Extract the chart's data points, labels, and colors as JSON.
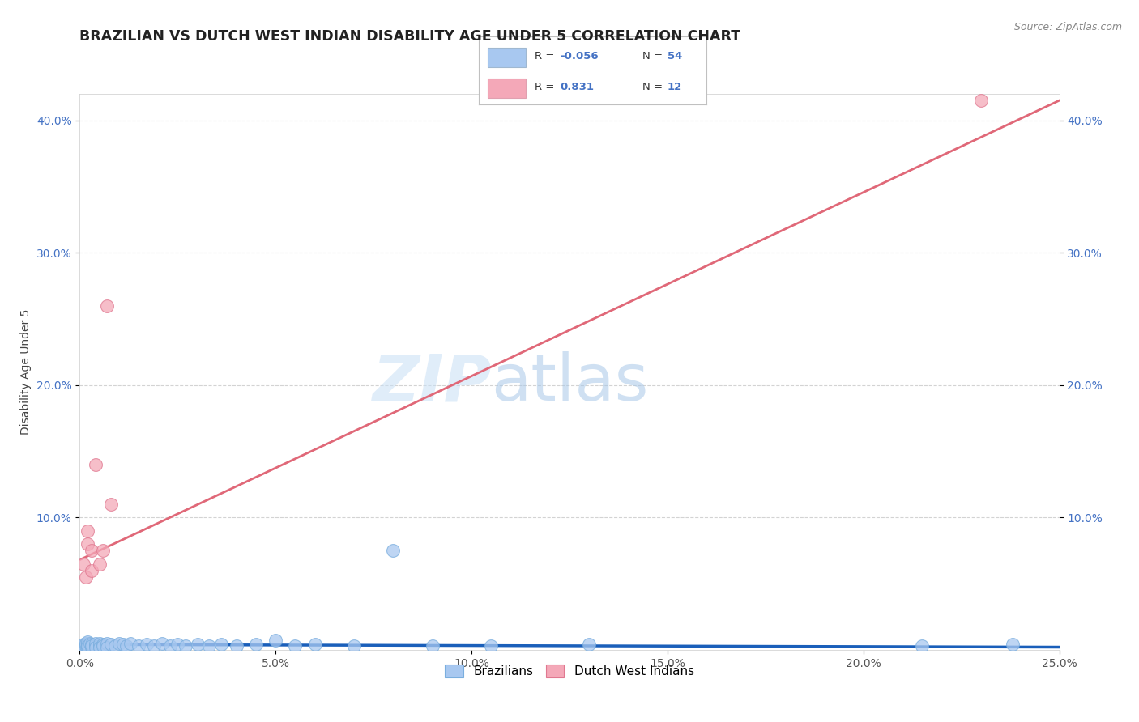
{
  "title": "BRAZILIAN VS DUTCH WEST INDIAN DISABILITY AGE UNDER 5 CORRELATION CHART",
  "source": "Source: ZipAtlas.com",
  "ylabel": "Disability Age Under 5",
  "xlim": [
    0.0,
    0.25
  ],
  "ylim": [
    0.0,
    0.42
  ],
  "background_color": "#ffffff",
  "grid_color": "#c8c8c8",
  "watermark_zip": "ZIP",
  "watermark_atlas": "atlas",
  "blue_color": "#a8c8f0",
  "blue_edge": "#7aaede",
  "pink_color": "#f4a8b8",
  "pink_edge": "#e07890",
  "line_blue": "#1a5fba",
  "line_pink": "#e06878",
  "title_fontsize": 12.5,
  "axis_label_fontsize": 10,
  "tick_fontsize": 10,
  "source_fontsize": 9,
  "brazilians_x": [
    0.0003,
    0.0005,
    0.0007,
    0.001,
    0.001,
    0.0012,
    0.0015,
    0.0015,
    0.002,
    0.002,
    0.002,
    0.002,
    0.0025,
    0.003,
    0.003,
    0.003,
    0.004,
    0.004,
    0.004,
    0.005,
    0.005,
    0.005,
    0.006,
    0.006,
    0.007,
    0.007,
    0.008,
    0.009,
    0.01,
    0.011,
    0.012,
    0.013,
    0.015,
    0.017,
    0.019,
    0.021,
    0.023,
    0.025,
    0.027,
    0.03,
    0.033,
    0.036,
    0.04,
    0.045,
    0.05,
    0.055,
    0.06,
    0.07,
    0.08,
    0.09,
    0.105,
    0.13,
    0.215,
    0.238
  ],
  "brazilians_y": [
    0.002,
    0.001,
    0.003,
    0.002,
    0.004,
    0.001,
    0.003,
    0.005,
    0.002,
    0.004,
    0.006,
    0.003,
    0.005,
    0.002,
    0.004,
    0.003,
    0.003,
    0.005,
    0.002,
    0.003,
    0.005,
    0.002,
    0.004,
    0.003,
    0.005,
    0.002,
    0.004,
    0.003,
    0.005,
    0.004,
    0.003,
    0.005,
    0.003,
    0.004,
    0.003,
    0.005,
    0.003,
    0.004,
    0.003,
    0.004,
    0.003,
    0.004,
    0.003,
    0.004,
    0.007,
    0.003,
    0.004,
    0.003,
    0.075,
    0.003,
    0.003,
    0.004,
    0.003,
    0.004
  ],
  "dutch_x": [
    0.001,
    0.0015,
    0.002,
    0.002,
    0.003,
    0.003,
    0.004,
    0.005,
    0.006,
    0.007,
    0.008,
    0.23
  ],
  "dutch_y": [
    0.065,
    0.055,
    0.09,
    0.08,
    0.075,
    0.06,
    0.14,
    0.065,
    0.075,
    0.26,
    0.11,
    0.415
  ],
  "blue_line_x0": 0.0,
  "blue_line_x1": 0.25,
  "blue_line_y0": 0.004,
  "blue_line_y1": 0.002,
  "pink_line_x0": 0.0,
  "pink_line_x1": 0.25,
  "pink_line_y0": 0.068,
  "pink_line_y1": 0.415
}
